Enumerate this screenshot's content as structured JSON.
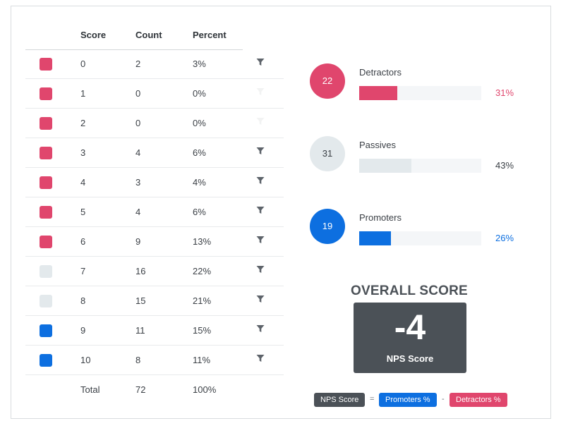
{
  "table": {
    "headers": {
      "score": "Score",
      "count": "Count",
      "percent": "Percent"
    },
    "rows": [
      {
        "score": "0",
        "count": "2",
        "percent": "3%",
        "group": "detractor",
        "filter_enabled": true
      },
      {
        "score": "1",
        "count": "0",
        "percent": "0%",
        "group": "detractor",
        "filter_enabled": false
      },
      {
        "score": "2",
        "count": "0",
        "percent": "0%",
        "group": "detractor",
        "filter_enabled": false
      },
      {
        "score": "3",
        "count": "4",
        "percent": "6%",
        "group": "detractor",
        "filter_enabled": true
      },
      {
        "score": "4",
        "count": "3",
        "percent": "4%",
        "group": "detractor",
        "filter_enabled": true
      },
      {
        "score": "5",
        "count": "4",
        "percent": "6%",
        "group": "detractor",
        "filter_enabled": true
      },
      {
        "score": "6",
        "count": "9",
        "percent": "13%",
        "group": "detractor",
        "filter_enabled": true
      },
      {
        "score": "7",
        "count": "16",
        "percent": "22%",
        "group": "passive",
        "filter_enabled": true
      },
      {
        "score": "8",
        "count": "15",
        "percent": "21%",
        "group": "passive",
        "filter_enabled": true
      },
      {
        "score": "9",
        "count": "11",
        "percent": "15%",
        "group": "promoter",
        "filter_enabled": true
      },
      {
        "score": "10",
        "count": "8",
        "percent": "11%",
        "group": "promoter",
        "filter_enabled": true
      }
    ],
    "total": {
      "label": "Total",
      "count": "72",
      "percent": "100%"
    },
    "filter_icon": "funnel-icon"
  },
  "colors": {
    "detractor": "#e0466d",
    "passive": "#e3e9ec",
    "promoter": "#0d6fe0",
    "dark": "#4b5157",
    "passive_text": "#3a3f45"
  },
  "categories": [
    {
      "key": "detractor",
      "label": "Detractors",
      "count": "22",
      "percent": "31%",
      "fill_fraction": 0.31
    },
    {
      "key": "passive",
      "label": "Passives",
      "count": "31",
      "percent": "43%",
      "fill_fraction": 0.43
    },
    {
      "key": "promoter",
      "label": "Promoters",
      "count": "19",
      "percent": "26%",
      "fill_fraction": 0.26
    }
  ],
  "overall": {
    "title": "OVERALL SCORE",
    "value": "-4",
    "subtitle": "NPS Score"
  },
  "formula": {
    "result": "NPS Score",
    "equals": "=",
    "promoters": "Promoters %",
    "minus": "-",
    "detractors": "Detractors %"
  }
}
